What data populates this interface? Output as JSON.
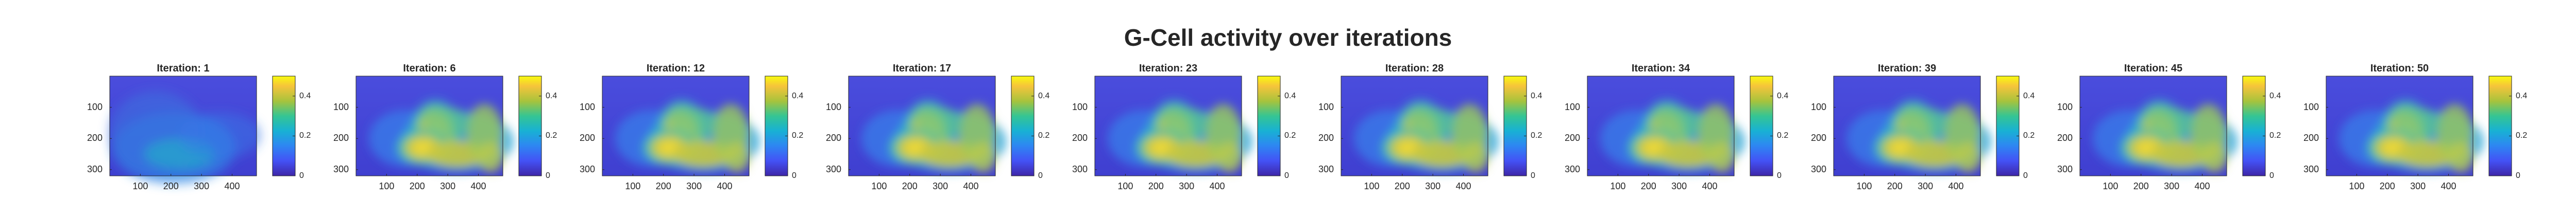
{
  "figure": {
    "title": "G-Cell activity over iterations"
  },
  "chart_data": {
    "type": "heatmap",
    "title": "G-Cell activity over iterations",
    "colormap": "parula",
    "x_range": [
      0,
      480
    ],
    "y_range": [
      0,
      320
    ],
    "y_direction": "reversed",
    "xticks": [
      100,
      200,
      300,
      400
    ],
    "yticks": [
      100,
      200,
      300
    ],
    "clim": [
      0,
      0.5
    ],
    "colorbar_ticks": [
      0,
      0.2,
      0.4
    ],
    "panels": [
      {
        "title": "Iteration: 1",
        "iteration": 1
      },
      {
        "title": "Iteration: 6",
        "iteration": 6
      },
      {
        "title": "Iteration: 12",
        "iteration": 12
      },
      {
        "title": "Iteration: 17",
        "iteration": 17
      },
      {
        "title": "Iteration: 23",
        "iteration": 23
      },
      {
        "title": "Iteration: 28",
        "iteration": 28
      },
      {
        "title": "Iteration: 34",
        "iteration": 34
      },
      {
        "title": "Iteration: 39",
        "iteration": 39
      },
      {
        "title": "Iteration: 45",
        "iteration": 45
      },
      {
        "title": "Iteration: 50",
        "iteration": 50
      }
    ]
  },
  "colors": {
    "low": "#3e26a8",
    "mid": "#1ac7c2",
    "high": "#f9fb0e",
    "axis": "#262626"
  }
}
